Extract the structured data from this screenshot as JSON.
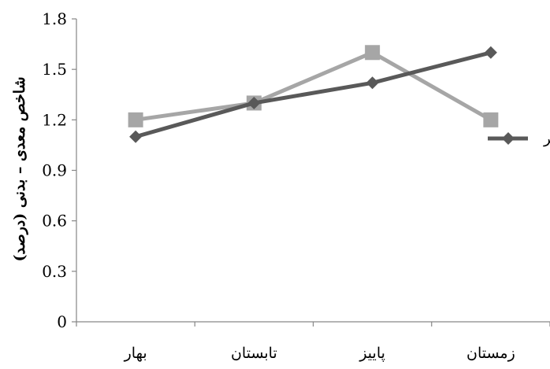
{
  "chart_data": {
    "type": "line",
    "title": "",
    "ylabel": "شاخص معدی – بدنی (درصد)",
    "xlabel": "",
    "categories": [
      "بهار",
      "تابستان",
      "پاییز",
      "زمستان"
    ],
    "ylim": [
      0,
      1.8
    ],
    "yticks": [
      "0",
      "0.3",
      "0.6",
      "0.9",
      "1.2",
      "1.5",
      "1.8"
    ],
    "grid": false,
    "legend_position": "right",
    "series": [
      {
        "name": "نر",
        "values": [
          1.1,
          1.3,
          1.42,
          1.6
        ],
        "color": "#595959",
        "marker": "diamond"
      },
      {
        "values": [
          1.2,
          1.3,
          1.6,
          1.2
        ],
        "color": "#a6a6a6",
        "marker": "square"
      }
    ]
  }
}
